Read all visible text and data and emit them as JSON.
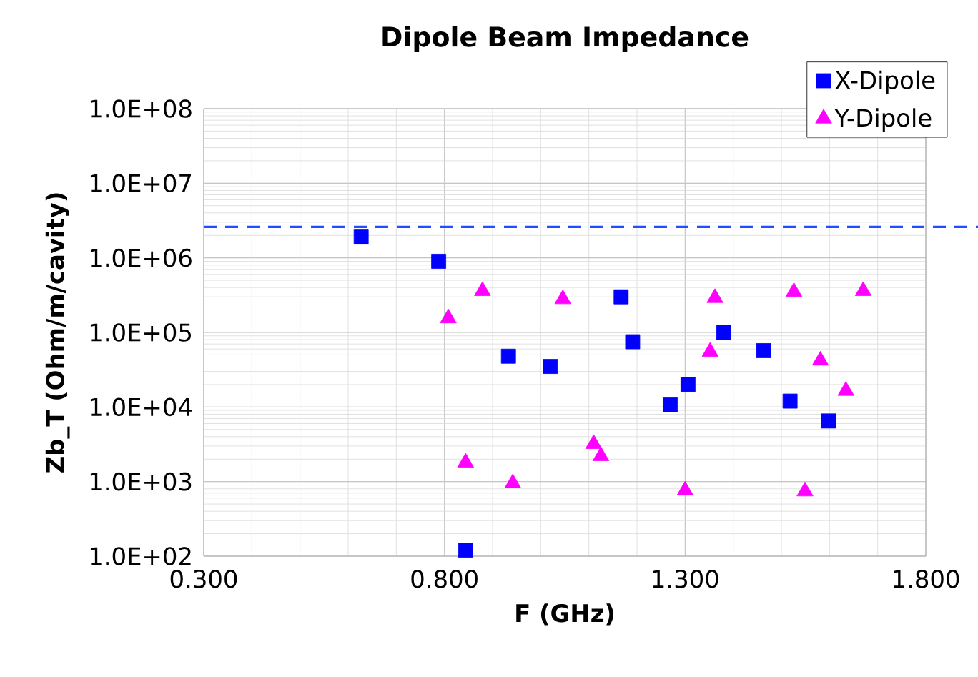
{
  "chart_data": {
    "type": "scatter",
    "title": "Dipole Beam Impedance",
    "xlabel": "F (GHz)",
    "ylabel": "Zb_T (Ohm/m/cavity)",
    "log": "y",
    "grid": true,
    "legend": "top right",
    "xlim": [
      0.3,
      1.8
    ],
    "ylim": [
      100,
      100000000
    ],
    "xticks": [
      {
        "value": 0.3,
        "label": "0.300"
      },
      {
        "value": 0.8,
        "label": "0.800"
      },
      {
        "value": 1.3,
        "label": "1.300"
      },
      {
        "value": 1.8,
        "label": "1.800"
      }
    ],
    "yticks": [
      {
        "value": 100,
        "label": "1.0E+02"
      },
      {
        "value": 1000,
        "label": "1.0E+03"
      },
      {
        "value": 10000,
        "label": "1.0E+04"
      },
      {
        "value": 100000,
        "label": "1.0E+05"
      },
      {
        "value": 1000000,
        "label": "1.0E+06"
      },
      {
        "value": 10000000,
        "label": "1.0E+07"
      },
      {
        "value": 100000000,
        "label": "1.0E+08"
      }
    ],
    "ref_lines": [
      {
        "axis": "y",
        "value": 2600000,
        "color": "#1f4fff",
        "line_style": "dashed"
      }
    ],
    "series": [
      {
        "name": "X-Dipole",
        "color": "#0000ff",
        "marker": "square",
        "x": [
          0.627,
          0.788,
          0.933,
          1.02,
          1.167,
          1.191,
          0.844,
          1.269,
          1.306,
          1.38,
          1.463,
          1.518,
          1.598
        ],
        "values": [
          1900000,
          900000,
          48000,
          35000,
          300000,
          75000,
          120,
          10700,
          20000,
          100000,
          57000,
          12000,
          6500
        ]
      },
      {
        "name": "Y-Dipole",
        "color": "#ff00ff",
        "marker": "triangle",
        "x": [
          0.808,
          0.879,
          1.046,
          0.844,
          0.942,
          1.11,
          1.125,
          1.3,
          1.352,
          1.362,
          1.526,
          1.581,
          1.634,
          1.549,
          1.67
        ],
        "values": [
          155000,
          360000,
          280000,
          1800,
          950,
          3200,
          2200,
          760,
          55000,
          290000,
          350000,
          42000,
          16500,
          740,
          360000
        ]
      }
    ]
  }
}
